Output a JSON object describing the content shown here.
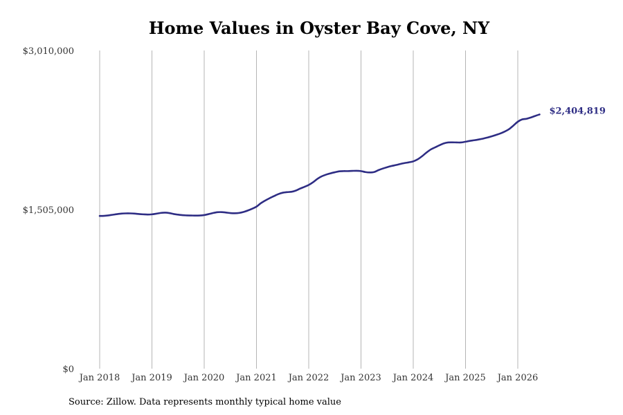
{
  "source_note": "Source: Zillow. Data represents monthly typical home value",
  "chart_data": {
    "type": "line",
    "title": "Home Values in Oyster Bay Cove, NY",
    "xlabel": "",
    "ylabel": "",
    "ylim": [
      0,
      3010000
    ],
    "y_ticks": [
      0,
      1505000,
      3010000
    ],
    "y_tick_labels": [
      "$0",
      "$1,505,000",
      "$3,010,000"
    ],
    "x_ticks": [
      "2018-01",
      "2019-01",
      "2020-01",
      "2021-01",
      "2022-01",
      "2023-01",
      "2024-01",
      "2025-01",
      "2026-01"
    ],
    "x_tick_labels": [
      "Jan 2018",
      "Jan 2019",
      "Jan 2020",
      "Jan 2021",
      "Jan 2022",
      "Jan 2023",
      "Jan 2024",
      "Jan 2025",
      "Jan 2026"
    ],
    "x_range": [
      "2018-01",
      "2026-07"
    ],
    "grid": "vertical",
    "color": "#2e2d84",
    "end_label": "$2,404,819",
    "series": [
      {
        "x": [
          "2018-01",
          "2018-02",
          "2018-03",
          "2018-04",
          "2018-05",
          "2018-06",
          "2018-07",
          "2018-08",
          "2018-09",
          "2018-10",
          "2018-11",
          "2018-12",
          "2019-01",
          "2019-02",
          "2019-03",
          "2019-04",
          "2019-05",
          "2019-06",
          "2019-07",
          "2019-08",
          "2019-09",
          "2019-10",
          "2019-11",
          "2019-12",
          "2020-01",
          "2020-02",
          "2020-03",
          "2020-04",
          "2020-05",
          "2020-06",
          "2020-07",
          "2020-08",
          "2020-09",
          "2020-10",
          "2020-11",
          "2020-12",
          "2021-01",
          "2021-02",
          "2021-03",
          "2021-04",
          "2021-05",
          "2021-06",
          "2021-07",
          "2021-08",
          "2021-09",
          "2021-10",
          "2021-11",
          "2021-12",
          "2022-01",
          "2022-02",
          "2022-03",
          "2022-04",
          "2022-05",
          "2022-06",
          "2022-07",
          "2022-08",
          "2022-09",
          "2022-10",
          "2022-11",
          "2022-12",
          "2023-01",
          "2023-02",
          "2023-03",
          "2023-04",
          "2023-05",
          "2023-06",
          "2023-07",
          "2023-08",
          "2023-09",
          "2023-10",
          "2023-11",
          "2023-12",
          "2024-01",
          "2024-02",
          "2024-03",
          "2024-04",
          "2024-05",
          "2024-06",
          "2024-07",
          "2024-08",
          "2024-09",
          "2024-10",
          "2024-11",
          "2024-12",
          "2025-01",
          "2025-02",
          "2025-03",
          "2025-04",
          "2025-05",
          "2025-06",
          "2025-07",
          "2025-08",
          "2025-09",
          "2025-10",
          "2025-11",
          "2025-12",
          "2026-01",
          "2026-02",
          "2026-03",
          "2026-04",
          "2026-05",
          "2026-06"
        ],
        "y": [
          1445000,
          1446000,
          1450000,
          1456000,
          1462000,
          1467000,
          1469000,
          1469000,
          1467000,
          1463000,
          1460000,
          1458000,
          1460000,
          1466000,
          1473000,
          1476000,
          1472000,
          1463000,
          1457000,
          1452000,
          1450000,
          1449000,
          1448000,
          1449000,
          1453000,
          1462000,
          1472000,
          1480000,
          1481000,
          1477000,
          1472000,
          1470000,
          1473000,
          1482000,
          1496000,
          1513000,
          1533000,
          1565000,
          1590000,
          1612000,
          1632000,
          1651000,
          1664000,
          1670000,
          1673000,
          1684000,
          1703000,
          1720000,
          1738000,
          1764000,
          1796000,
          1820000,
          1836000,
          1848000,
          1858000,
          1867000,
          1869000,
          1869000,
          1871000,
          1872000,
          1869000,
          1860000,
          1856000,
          1860000,
          1878000,
          1893000,
          1906000,
          1917000,
          1926000,
          1936000,
          1945000,
          1952000,
          1961000,
          1980000,
          2009000,
          2043000,
          2073000,
          2093000,
          2113000,
          2131000,
          2140000,
          2141000,
          2140000,
          2140000,
          2147000,
          2155000,
          2161000,
          2168000,
          2176000,
          2186000,
          2198000,
          2211000,
          2225000,
          2243000,
          2266000,
          2300000,
          2336000,
          2358000,
          2364000,
          2376000,
          2391000,
          2404819
        ]
      }
    ]
  }
}
